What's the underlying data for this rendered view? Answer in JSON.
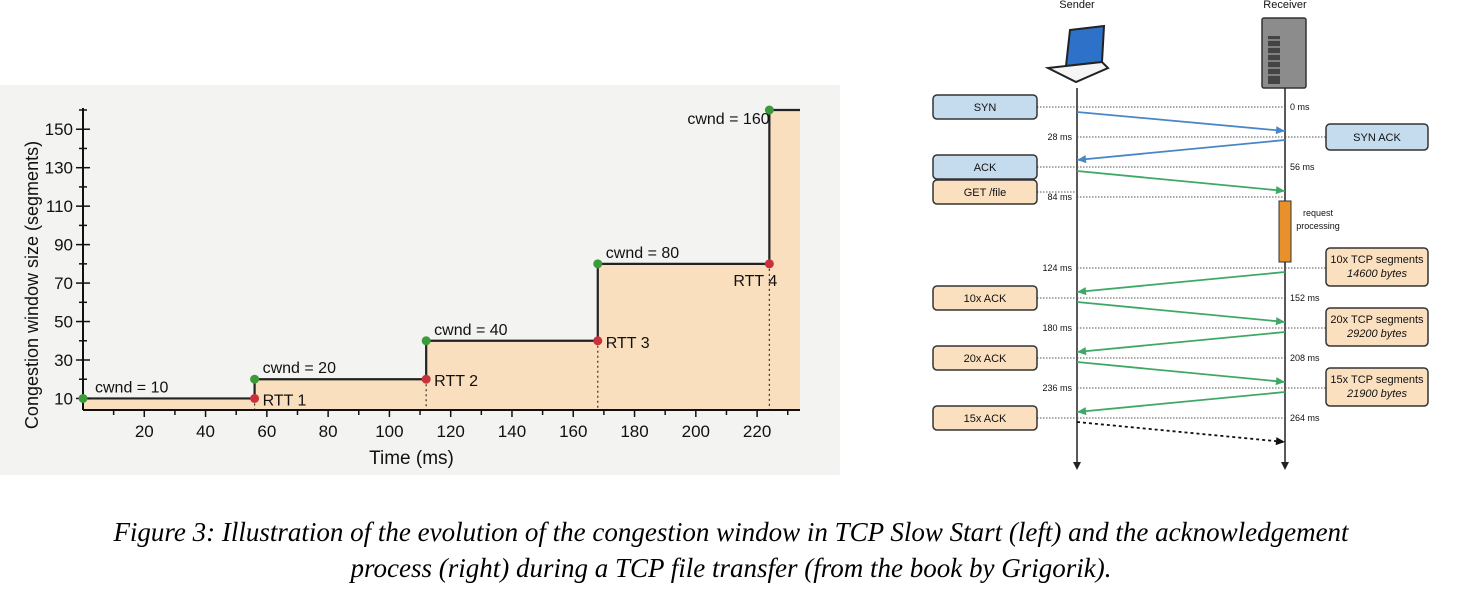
{
  "chart_data": {
    "type": "line",
    "subtype": "step",
    "xlabel": "Time (ms)",
    "ylabel": "Congestion window size (segments)",
    "xticks": [
      20,
      40,
      60,
      80,
      100,
      120,
      140,
      160,
      180,
      200,
      220
    ],
    "yticks": [
      10,
      30,
      50,
      70,
      90,
      110,
      130,
      150
    ],
    "xlim": [
      0,
      234
    ],
    "ylim": [
      4,
      160
    ],
    "series": [
      {
        "values": [
          [
            0,
            10
          ],
          [
            56,
            10
          ],
          [
            56,
            20
          ],
          [
            112,
            20
          ],
          [
            112,
            40
          ],
          [
            168,
            40
          ],
          [
            168,
            80
          ],
          [
            224,
            80
          ],
          [
            224,
            160
          ],
          [
            234,
            160
          ]
        ]
      }
    ],
    "green_points": [
      [
        0,
        10
      ],
      [
        56,
        20
      ],
      [
        112,
        40
      ],
      [
        168,
        80
      ],
      [
        224,
        160
      ]
    ],
    "red_points": [
      [
        56,
        10
      ],
      [
        112,
        20
      ],
      [
        168,
        40
      ],
      [
        224,
        80
      ]
    ],
    "cwnd_labels": [
      {
        "text": "cwnd = 10",
        "x": 0,
        "y": 10
      },
      {
        "text": "cwnd = 20",
        "x": 56,
        "y": 20
      },
      {
        "text": "cwnd = 40",
        "x": 112,
        "y": 40
      },
      {
        "text": "cwnd = 80",
        "x": 168,
        "y": 80
      },
      {
        "text": "cwnd = 160",
        "x": 224,
        "y": 160
      }
    ],
    "rtt_labels": [
      {
        "text": "RTT 1",
        "x": 56,
        "y": 10
      },
      {
        "text": "RTT 2",
        "x": 112,
        "y": 20
      },
      {
        "text": "RTT 3",
        "x": 168,
        "y": 40
      },
      {
        "text": "RTT 4",
        "x": 224,
        "y": 80
      }
    ],
    "fill_color": "#f9dfbd",
    "line_color": "#222222",
    "green_color": "#3a9b3a",
    "red_color": "#c8323a"
  },
  "sequence": {
    "sender_label": "Sender",
    "receiver_label": "Receiver",
    "sender_icon": "laptop-icon",
    "receiver_icon": "server-icon",
    "processing_label": [
      "request",
      "processing"
    ],
    "colors": {
      "blue": "#4a86c5",
      "green": "#3fa866",
      "blue_box": "#c5dcef",
      "orange_box": "#fbe0c0",
      "processing": "#e8902a"
    },
    "left_boxes": [
      {
        "label": "SYN",
        "style": "blue"
      },
      {
        "label": "ACK",
        "style": "blue"
      },
      {
        "label": "GET /file",
        "style": "orange"
      },
      {
        "label": "10x ACK",
        "style": "orange"
      },
      {
        "label": "20x ACK",
        "style": "orange"
      },
      {
        "label": "15x ACK",
        "style": "orange"
      }
    ],
    "right_boxes": [
      {
        "lines": [
          "SYN ACK"
        ],
        "style": "blue"
      },
      {
        "lines": [
          "10x TCP segments",
          "14600 bytes"
        ],
        "style": "orange"
      },
      {
        "lines": [
          "20x TCP segments",
          "29200 bytes"
        ],
        "style": "orange"
      },
      {
        "lines": [
          "15x TCP segments",
          "21900 bytes"
        ],
        "style": "orange"
      }
    ],
    "sender_times": [
      "28 ms",
      "84 ms",
      "124 ms",
      "180 ms",
      "236 ms"
    ],
    "receiver_times": [
      "0 ms",
      "56 ms",
      "152 ms",
      "208 ms",
      "264 ms"
    ]
  },
  "caption": {
    "line1": "Figure 3: Illustration of the evolution of the congestion window in TCP Slow Start (left) and the acknowledgement",
    "line2": "process (right) during a TCP file transfer (from the book by Grigorik)."
  }
}
